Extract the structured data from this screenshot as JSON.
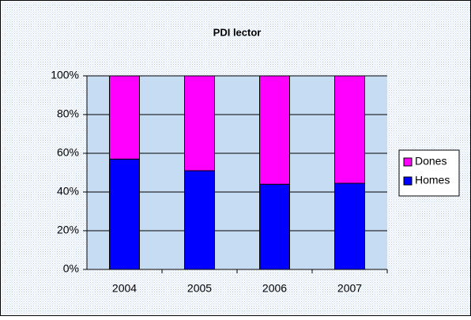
{
  "chart_data": {
    "type": "stacked_bar",
    "title": "PDI lector",
    "categories": [
      "2004",
      "2005",
      "2006",
      "2007"
    ],
    "series": [
      {
        "name": "Homes",
        "color": "#0000ff",
        "values": [
          57,
          51,
          44,
          44.5
        ]
      },
      {
        "name": "Dones",
        "color": "#ff00ff",
        "values": [
          43,
          49,
          56,
          55.5
        ]
      }
    ],
    "ylim": [
      0,
      100
    ],
    "yticks": [
      {
        "value": 0,
        "label": "0%"
      },
      {
        "value": 20,
        "label": "20%"
      },
      {
        "value": 40,
        "label": "40%"
      },
      {
        "value": 60,
        "label": "60%"
      },
      {
        "value": 80,
        "label": "80%"
      },
      {
        "value": 100,
        "label": "100%"
      }
    ],
    "grid": true,
    "legend": "right"
  }
}
